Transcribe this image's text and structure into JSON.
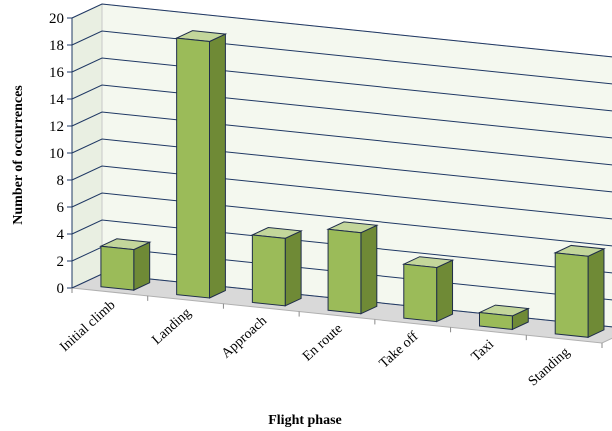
{
  "chart_data": {
    "type": "bar",
    "title": "",
    "xlabel": "Flight phase",
    "ylabel": "Number of occurrences",
    "categories": [
      "Initial climb",
      "Landing",
      "Approach",
      "En route",
      "Take off",
      "Taxi",
      "Standing"
    ],
    "values": [
      3,
      19,
      5,
      6,
      4,
      1,
      6
    ],
    "ylim": [
      0,
      20
    ],
    "yticks": [
      0,
      2,
      4,
      6,
      8,
      10,
      12,
      14,
      16,
      18,
      20
    ],
    "grid": true,
    "legend": "none",
    "three_d": true,
    "colors": {
      "bar_front": "#9bbb59",
      "bar_side": "#6f8a36",
      "bar_top": "#c3d69b",
      "bar_edge": "#1f2d4a",
      "wall": "#f4f8ef",
      "floor": "#d9d9d9",
      "grid": "#1f3864"
    }
  }
}
